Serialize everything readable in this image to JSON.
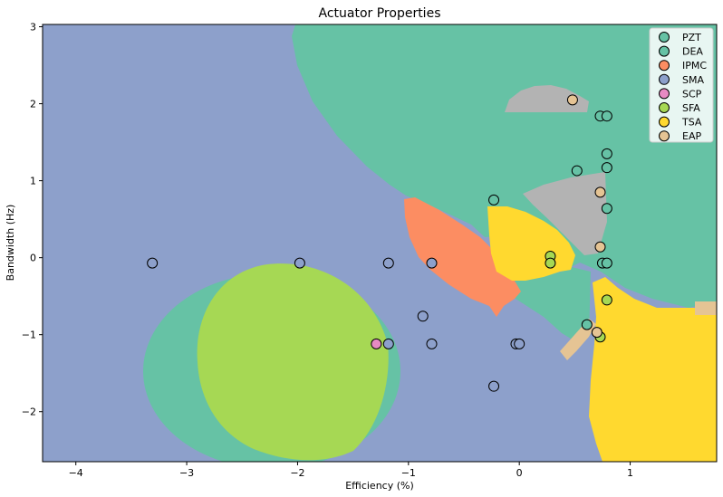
{
  "chart_data": {
    "type": "scatter",
    "title": "Actuator Properties",
    "xlabel": "Efficiency (%)",
    "ylabel": "Bandwidth (Hz)",
    "xlim": [
      -4.3,
      1.78
    ],
    "ylim": [
      -2.65,
      3.03
    ],
    "xticks": [
      -4,
      -3,
      -2,
      -1,
      0,
      1
    ],
    "yticks": [
      -2,
      -1,
      0,
      1,
      2,
      3
    ],
    "grid": false,
    "legend_position": "top-right",
    "classes": [
      {
        "name": "PZT",
        "color": "#66c2a5"
      },
      {
        "name": "DEA",
        "color": "#66c2a5"
      },
      {
        "name": "IPMC",
        "color": "#fc8d62"
      },
      {
        "name": "SMA",
        "color": "#8da0cb"
      },
      {
        "name": "SCP",
        "color": "#e78ac3"
      },
      {
        "name": "SFA",
        "color": "#a6d854"
      },
      {
        "name": "TSA",
        "color": "#ffd92f"
      },
      {
        "name": "EAP",
        "color": "#e5c494"
      }
    ],
    "background_color": "#8da0cb",
    "decision_region_colors": {
      "DEA": "#66c2a5",
      "IPMC": "#fc8d62",
      "SFA": "#a6d854",
      "TSA": "#ffd92f",
      "EAP": "#e5c494",
      "overlap": "#b3b3b3"
    },
    "points": [
      {
        "x": -3.31,
        "y": -0.07,
        "class": "SMA"
      },
      {
        "x": -1.98,
        "y": -0.07,
        "class": "SMA"
      },
      {
        "x": -1.18,
        "y": -0.07,
        "class": "SMA"
      },
      {
        "x": -0.79,
        "y": -0.07,
        "class": "SMA"
      },
      {
        "x": -0.87,
        "y": -0.76,
        "class": "SMA"
      },
      {
        "x": -1.18,
        "y": -1.12,
        "class": "SMA"
      },
      {
        "x": -0.79,
        "y": -1.12,
        "class": "SMA"
      },
      {
        "x": -1.29,
        "y": -1.12,
        "class": "SCP"
      },
      {
        "x": -0.03,
        "y": -1.12,
        "class": "SMA"
      },
      {
        "x": 0.0,
        "y": -1.12,
        "class": "SMA"
      },
      {
        "x": -0.23,
        "y": -1.67,
        "class": "SMA"
      },
      {
        "x": -0.23,
        "y": 0.75,
        "class": "DEA"
      },
      {
        "x": 0.28,
        "y": 0.02,
        "class": "SFA"
      },
      {
        "x": 0.28,
        "y": -0.07,
        "class": "SFA"
      },
      {
        "x": 0.48,
        "y": 2.05,
        "class": "EAP"
      },
      {
        "x": 0.52,
        "y": 1.13,
        "class": "DEA"
      },
      {
        "x": 0.73,
        "y": 1.84,
        "class": "DEA"
      },
      {
        "x": 0.79,
        "y": 1.84,
        "class": "DEA"
      },
      {
        "x": 0.79,
        "y": 1.35,
        "class": "DEA"
      },
      {
        "x": 0.79,
        "y": 1.17,
        "class": "DEA"
      },
      {
        "x": 0.73,
        "y": 0.85,
        "class": "EAP"
      },
      {
        "x": 0.79,
        "y": 0.64,
        "class": "DEA"
      },
      {
        "x": 0.73,
        "y": 0.14,
        "class": "EAP"
      },
      {
        "x": 0.75,
        "y": -0.07,
        "class": "DEA"
      },
      {
        "x": 0.79,
        "y": -0.07,
        "class": "DEA"
      },
      {
        "x": 0.79,
        "y": -0.55,
        "class": "SFA"
      },
      {
        "x": 0.61,
        "y": -0.87,
        "class": "DEA"
      },
      {
        "x": 0.73,
        "y": -1.03,
        "class": "SFA"
      },
      {
        "x": 0.7,
        "y": -0.97,
        "class": "EAP"
      }
    ]
  }
}
